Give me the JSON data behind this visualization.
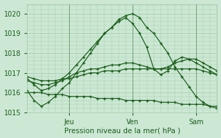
{
  "title": "",
  "xlabel": "Pression niveau de la mer( hPa )",
  "bg_color": "#cce8d4",
  "plot_bg_color": "#cce8d4",
  "grid_color": "#a0c8a8",
  "line_color": "#1a5c1a",
  "ylim": [
    1015.0,
    1020.5
  ],
  "xlim": [
    0,
    54
  ],
  "yticks": [
    1015,
    1016,
    1017,
    1018,
    1019,
    1020
  ],
  "xtick_positions": [
    12,
    30,
    48
  ],
  "xtick_labels": [
    "Jeu",
    "Ven",
    "Sam"
  ],
  "lines": [
    {
      "x": [
        0,
        2,
        4,
        6,
        8,
        10,
        12,
        14,
        16,
        18,
        20,
        22,
        24,
        26,
        28,
        30,
        32,
        34,
        36,
        38,
        40,
        42,
        44,
        46,
        48,
        50,
        52,
        54
      ],
      "y": [
        1016.1,
        1015.6,
        1015.3,
        1015.5,
        1015.8,
        1016.2,
        1016.5,
        1017.0,
        1017.5,
        1018.0,
        1018.5,
        1019.0,
        1019.3,
        1019.7,
        1019.9,
        1020.0,
        1019.8,
        1019.3,
        1019.0,
        1018.5,
        1018.0,
        1017.3,
        1016.8,
        1016.3,
        1015.8,
        1015.5,
        1015.3,
        1015.2
      ]
    },
    {
      "x": [
        0,
        2,
        4,
        6,
        8,
        10,
        12,
        14,
        16,
        18,
        20,
        22,
        24,
        26,
        28,
        30,
        32,
        34,
        36,
        38,
        40,
        42,
        44,
        46,
        48,
        50,
        52,
        54
      ],
      "y": [
        1016.7,
        1016.4,
        1016.1,
        1016.2,
        1016.4,
        1016.7,
        1017.0,
        1017.4,
        1017.8,
        1018.2,
        1018.6,
        1019.0,
        1019.3,
        1019.6,
        1019.8,
        1019.5,
        1019.0,
        1018.3,
        1017.2,
        1016.9,
        1017.1,
        1017.6,
        1017.8,
        1017.7,
        1017.5,
        1017.3,
        1017.1,
        1016.9
      ]
    },
    {
      "x": [
        0,
        2,
        4,
        6,
        8,
        10,
        12,
        14,
        16,
        18,
        20,
        22,
        24,
        26,
        28,
        30,
        32,
        34,
        36,
        38,
        40,
        42,
        44,
        46,
        48,
        50,
        52,
        54
      ],
      "y": [
        1016.6,
        1016.5,
        1016.4,
        1016.4,
        1016.5,
        1016.6,
        1016.8,
        1017.0,
        1017.1,
        1017.2,
        1017.2,
        1017.3,
        1017.4,
        1017.4,
        1017.5,
        1017.5,
        1017.4,
        1017.3,
        1017.2,
        1017.2,
        1017.3,
        1017.5,
        1017.6,
        1017.7,
        1017.7,
        1017.5,
        1017.3,
        1017.1
      ]
    },
    {
      "x": [
        0,
        2,
        4,
        6,
        8,
        10,
        12,
        14,
        16,
        18,
        20,
        22,
        24,
        26,
        28,
        30,
        32,
        34,
        36,
        38,
        40,
        42,
        44,
        46,
        48,
        50,
        52,
        54
      ],
      "y": [
        1016.8,
        1016.7,
        1016.6,
        1016.6,
        1016.6,
        1016.7,
        1016.7,
        1016.8,
        1016.9,
        1017.0,
        1017.0,
        1017.1,
        1017.1,
        1017.1,
        1017.2,
        1017.2,
        1017.2,
        1017.2,
        1017.2,
        1017.2,
        1017.2,
        1017.2,
        1017.2,
        1017.2,
        1017.2,
        1017.1,
        1017.0,
        1016.9
      ]
    },
    {
      "x": [
        0,
        2,
        4,
        6,
        8,
        10,
        12,
        14,
        16,
        18,
        20,
        22,
        24,
        26,
        28,
        30,
        32,
        34,
        36,
        38,
        40,
        42,
        44,
        46,
        48,
        50,
        52,
        54
      ],
      "y": [
        1016.0,
        1016.0,
        1016.0,
        1015.9,
        1015.9,
        1015.9,
        1015.8,
        1015.8,
        1015.8,
        1015.8,
        1015.7,
        1015.7,
        1015.7,
        1015.7,
        1015.6,
        1015.6,
        1015.6,
        1015.6,
        1015.6,
        1015.5,
        1015.5,
        1015.5,
        1015.4,
        1015.4,
        1015.4,
        1015.4,
        1015.3,
        1015.3
      ]
    }
  ],
  "marker": "+",
  "markersize": 3.5,
  "linewidth": 0.9
}
